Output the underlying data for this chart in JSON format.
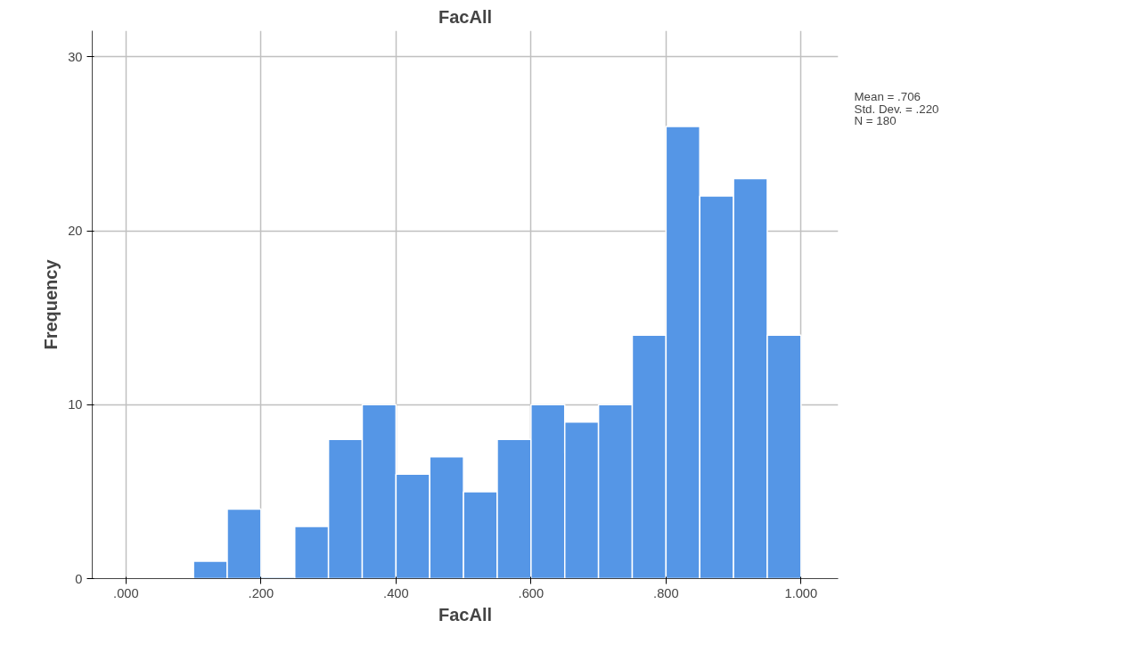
{
  "chart_data": {
    "type": "histogram",
    "title": "FacAll",
    "xlabel": "FacAll",
    "ylabel": "Frequency",
    "bins": [
      0.1,
      0.15,
      0.2,
      0.25,
      0.3,
      0.35,
      0.4,
      0.45,
      0.5,
      0.55,
      0.6,
      0.65,
      0.7,
      0.75,
      0.8,
      0.85,
      0.9,
      0.95,
      1.0
    ],
    "values": [
      1,
      4,
      0,
      3,
      8,
      10,
      6,
      7,
      5,
      8,
      10,
      9,
      10,
      14,
      26,
      22,
      23,
      14
    ],
    "color": "#5596e6",
    "xlim": [
      -0.05,
      1.055
    ],
    "ylim": [
      0,
      31.5
    ],
    "xticks": [
      {
        "value": 0,
        "label": ".000"
      },
      {
        "value": 0.2,
        "label": ".200"
      },
      {
        "value": 0.4,
        "label": ".400"
      },
      {
        "value": 0.6,
        "label": ".600"
      },
      {
        "value": 0.8,
        "label": ".800"
      },
      {
        "value": 1.0,
        "label": "1.000"
      }
    ],
    "yticks": [
      0,
      10,
      20,
      30
    ],
    "grid": true,
    "legend": false,
    "annotations": [
      "Mean = .706",
      "Std. Dev. = .220",
      "N = 180"
    ]
  }
}
